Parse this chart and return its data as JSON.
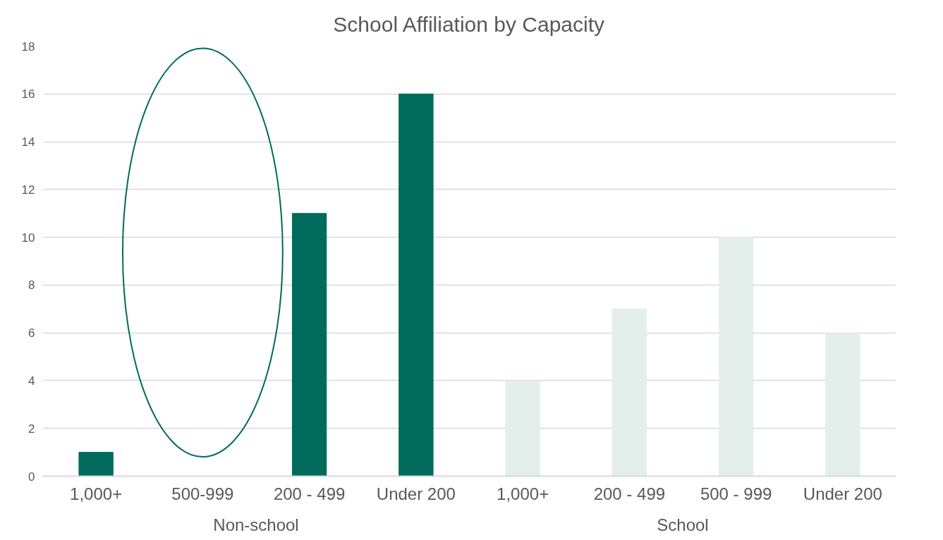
{
  "chart_data": {
    "type": "bar",
    "title": "School Affiliation by Capacity",
    "categories": [
      "1,000+",
      "500-999",
      "200 - 499",
      "Under 200",
      "1,000+",
      "200 - 499",
      "500 - 999",
      "Under 200"
    ],
    "series": [
      {
        "name": "Non-school",
        "color": "#006b5a",
        "values": [
          1,
          0,
          11,
          16,
          null,
          null,
          null,
          null
        ]
      },
      {
        "name": "School",
        "color": "#e4efec",
        "values": [
          null,
          null,
          null,
          null,
          4,
          7,
          10,
          6
        ]
      }
    ],
    "ylim": [
      0,
      18
    ],
    "yticks": [
      0,
      2,
      4,
      6,
      8,
      10,
      12,
      14,
      16,
      18
    ],
    "grid": "y"
  }
}
